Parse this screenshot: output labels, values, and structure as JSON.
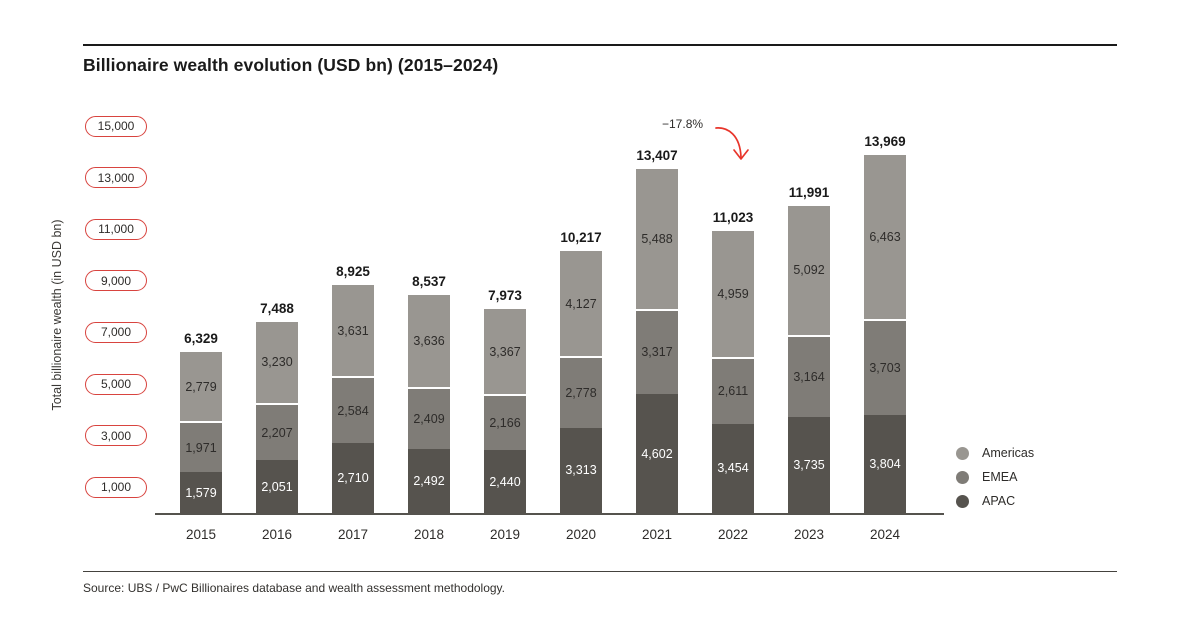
{
  "chart_data": {
    "type": "bar",
    "subtype": "stacked-vertical",
    "title": "Billionaire wealth evolution (USD bn) (2015–2024)",
    "ylabel": "Total billionaire wealth (in USD bn)",
    "xlabel": "",
    "categories": [
      "2015",
      "2016",
      "2017",
      "2018",
      "2019",
      "2020",
      "2021",
      "2022",
      "2023",
      "2024"
    ],
    "series": [
      {
        "name": "APAC",
        "color": "#56534e",
        "label_color": "#ffffff",
        "values": [
          1579,
          2051,
          2710,
          2492,
          2440,
          3313,
          4602,
          3454,
          3735,
          3804
        ]
      },
      {
        "name": "EMEA",
        "color": "#7f7c77",
        "label_color": "#2e2c2a",
        "values": [
          1971,
          2207,
          2584,
          2409,
          2166,
          2778,
          3317,
          2611,
          3164,
          3703
        ]
      },
      {
        "name": "Americas",
        "color": "#999691",
        "label_color": "#2e2c2a",
        "values": [
          2779,
          3230,
          3631,
          3636,
          3367,
          4127,
          5488,
          4959,
          5092,
          6463
        ]
      }
    ],
    "totals": [
      6329,
      7488,
      8925,
      8537,
      7973,
      10217,
      13407,
      11023,
      11991,
      13969
    ],
    "yticks": [
      "15,000",
      "13,000",
      "11,000",
      "9,000",
      "7,000",
      "5,000",
      "3,000",
      "1,000"
    ],
    "ylim": [
      0,
      15500
    ],
    "grid": false,
    "legend_position": "right",
    "legend": [
      {
        "label": "Americas",
        "color": "#999691"
      },
      {
        "label": "EMEA",
        "color": "#7f7c77"
      },
      {
        "label": "APAC",
        "color": "#56534e"
      }
    ],
    "annotation": {
      "text": "−17.8%",
      "color": "#e8352b",
      "target_year": "2022"
    },
    "colors": {
      "axis": "#55534e",
      "tick_pill_border": "#d8443f",
      "total_label": "#1a1a1a",
      "title": "#1a1a1a"
    },
    "source": "Source: UBS / PwC Billionaires database and wealth assessment methodology."
  }
}
